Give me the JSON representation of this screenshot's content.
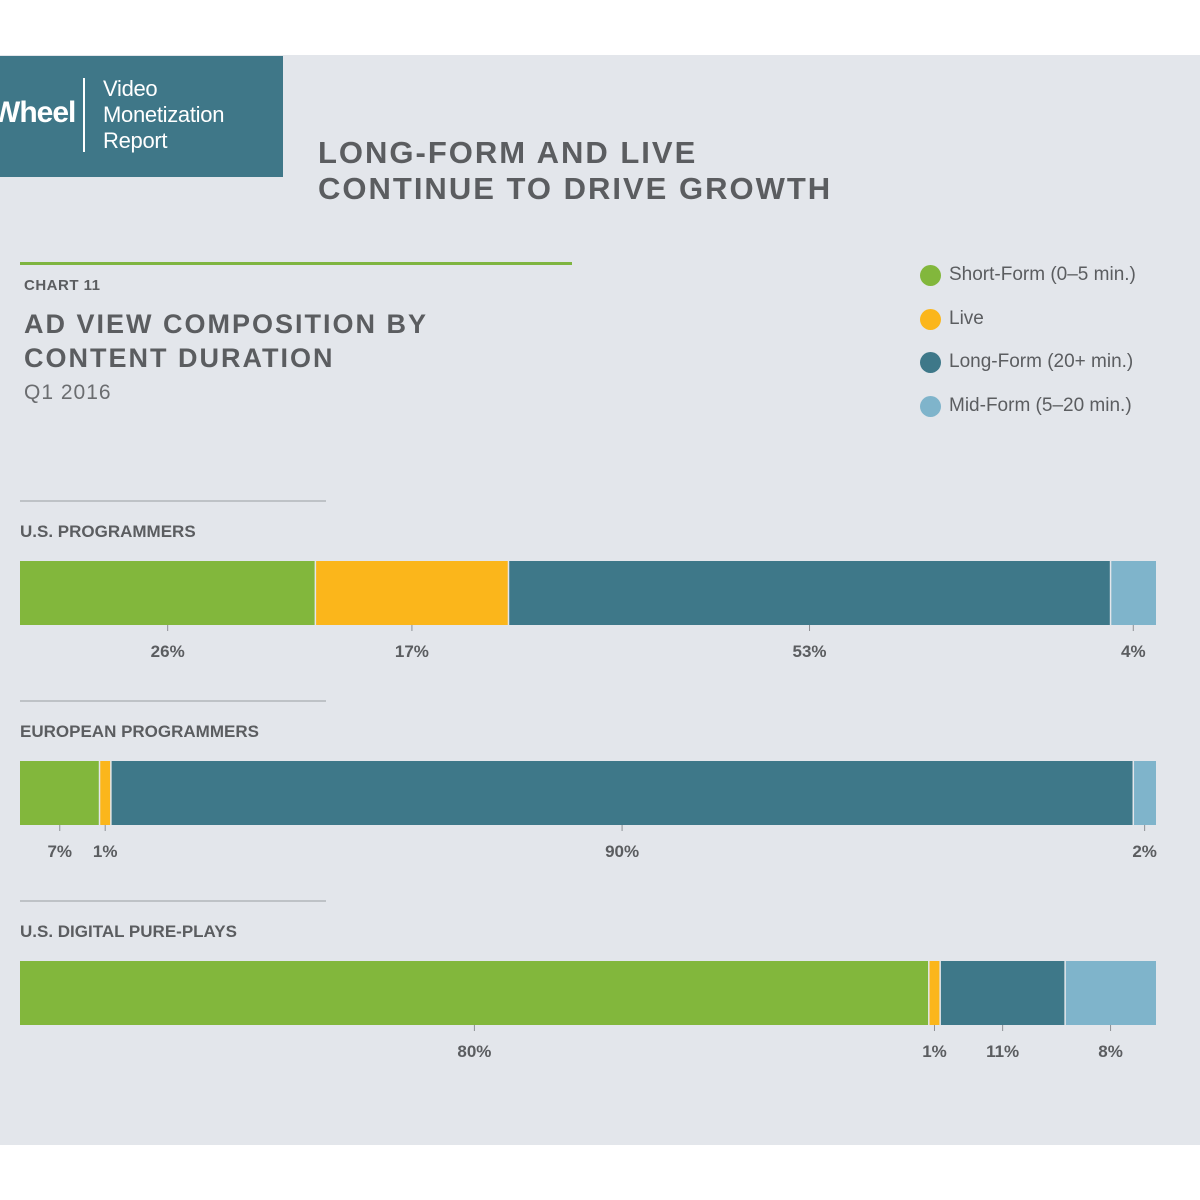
{
  "header": {
    "logo_text": "Wheel",
    "report_lines": [
      "Video",
      "Monetization",
      "Report"
    ],
    "headline_lines": [
      "LONG-FORM AND LIVE",
      "CONTINUE TO DRIVE GROWTH"
    ]
  },
  "chart_data": {
    "type": "bar",
    "orientation": "horizontal-stacked-100",
    "chart_number": "CHART 11",
    "title_lines": [
      "AD VIEW COMPOSITION BY",
      "CONTENT DURATION"
    ],
    "subtitle": "Q1 2016",
    "legend_position": "top-right",
    "series": [
      {
        "name": "Short-Form (0–5 min.)",
        "color": "#82b73c"
      },
      {
        "name": "Live",
        "color": "#fbb61b"
      },
      {
        "name": "Long-Form (20+ min.)",
        "color": "#3e7889"
      },
      {
        "name": "Mid-Form (5–20 min.)",
        "color": "#7fb4cb"
      }
    ],
    "legend_order": [
      0,
      1,
      2,
      3
    ],
    "groups": [
      {
        "label": "U.S. PROGRAMMERS",
        "stack_order": [
          0,
          1,
          2,
          3
        ],
        "values": [
          26,
          17,
          53,
          4
        ],
        "labels": [
          "26%",
          "17%",
          "53%",
          "4%"
        ]
      },
      {
        "label": "EUROPEAN PROGRAMMERS",
        "stack_order": [
          0,
          1,
          2,
          3
        ],
        "values": [
          7,
          1,
          90,
          2
        ],
        "labels": [
          "7%",
          "1%",
          "90%",
          "2%"
        ]
      },
      {
        "label": "U.S. DIGITAL PURE-PLAYS",
        "stack_order": [
          0,
          1,
          2,
          3
        ],
        "values": [
          80,
          1,
          11,
          8
        ],
        "labels": [
          "80%",
          "1%",
          "11%",
          "8%"
        ]
      }
    ]
  }
}
